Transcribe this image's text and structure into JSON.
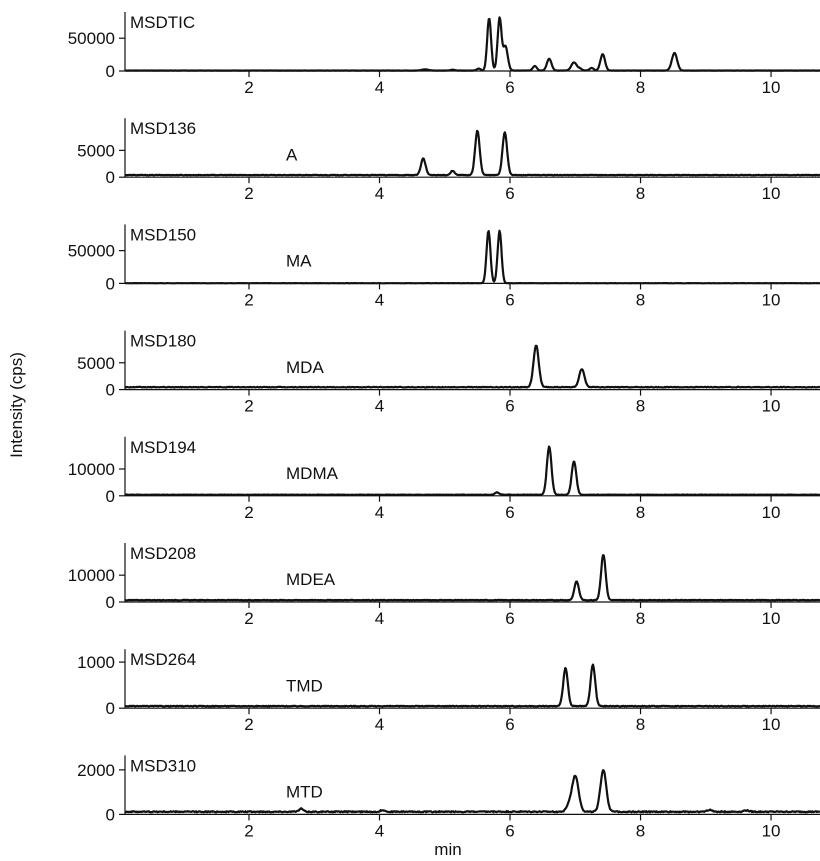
{
  "chart_data": {
    "type": "line",
    "ylabel": "Intensity (cps)",
    "xlabel": "min",
    "xlim": [
      0.1,
      10.75
    ],
    "xticks": [
      2,
      4,
      6,
      8,
      10
    ],
    "line_color": "#111111",
    "panels": [
      {
        "channel": "MSDTIC",
        "compound": "",
        "ylim": [
          0,
          90000
        ],
        "yticks": [
          0,
          50000
        ],
        "baseline": 700,
        "peaks": [
          [
            4.7,
            1800,
            0.05
          ],
          [
            5.12,
            1300,
            0.03
          ],
          [
            5.52,
            3000,
            0.03
          ],
          [
            5.68,
            80000,
            0.03
          ],
          [
            5.84,
            80000,
            0.03
          ],
          [
            5.93,
            37000,
            0.035
          ],
          [
            6.38,
            7000,
            0.03
          ],
          [
            6.6,
            18000,
            0.035
          ],
          [
            6.98,
            12500,
            0.04
          ],
          [
            7.07,
            3000,
            0.03
          ],
          [
            7.25,
            4000,
            0.03
          ],
          [
            7.42,
            25000,
            0.035
          ],
          [
            8.52,
            27000,
            0.04
          ]
        ],
        "noise": 120
      },
      {
        "channel": "MSD136",
        "compound": "A",
        "ylim": [
          0,
          11000
        ],
        "yticks": [
          0,
          5000
        ],
        "baseline": 400,
        "peaks": [
          [
            4.67,
            3100,
            0.035
          ],
          [
            5.12,
            800,
            0.03
          ],
          [
            5.5,
            8300,
            0.035
          ],
          [
            5.92,
            8000,
            0.035
          ]
        ],
        "noise": 50
      },
      {
        "channel": "MSD150",
        "compound": "MA",
        "ylim": [
          0,
          90000
        ],
        "yticks": [
          0,
          50000
        ],
        "baseline": 300,
        "peaks": [
          [
            5.67,
            80000,
            0.03
          ],
          [
            5.84,
            80000,
            0.03
          ]
        ],
        "noise": 150
      },
      {
        "channel": "MSD180",
        "compound": "MDA",
        "ylim": [
          0,
          11000
        ],
        "yticks": [
          0,
          5000
        ],
        "baseline": 450,
        "peaks": [
          [
            6.4,
            7800,
            0.04
          ],
          [
            7.1,
            3400,
            0.04
          ]
        ],
        "noise": 60
      },
      {
        "channel": "MSD194",
        "compound": "MDMA",
        "ylim": [
          0,
          22000
        ],
        "yticks": [
          0,
          10000
        ],
        "baseline": 400,
        "peaks": [
          [
            5.8,
            900,
            0.03
          ],
          [
            6.6,
            18000,
            0.035
          ],
          [
            6.98,
            12500,
            0.035
          ]
        ],
        "noise": 70
      },
      {
        "channel": "MSD208",
        "compound": "MDEA",
        "ylim": [
          0,
          22000
        ],
        "yticks": [
          0,
          10000
        ],
        "baseline": 700,
        "peaks": [
          [
            7.02,
            7000,
            0.035
          ],
          [
            7.43,
            17000,
            0.035
          ]
        ],
        "noise": 90
      },
      {
        "channel": "MSD264",
        "compound": "TMD",
        "ylim": [
          0,
          1280
        ],
        "yticks": [
          0,
          1000
        ],
        "baseline": 45,
        "peaks": [
          [
            6.85,
            830,
            0.035
          ],
          [
            7.27,
            900,
            0.035
          ]
        ],
        "noise": 8
      },
      {
        "channel": "MSD310",
        "compound": "MTD",
        "ylim": [
          0,
          2650
        ],
        "yticks": [
          0,
          2000
        ],
        "baseline": 120,
        "peaks": [
          [
            2.8,
            140,
            0.03
          ],
          [
            4.05,
            80,
            0.03
          ],
          [
            6.9,
            250,
            0.04
          ],
          [
            7.0,
            1620,
            0.05
          ],
          [
            7.43,
            1880,
            0.045
          ],
          [
            9.06,
            80,
            0.04
          ],
          [
            9.62,
            60,
            0.04
          ]
        ],
        "noise": 25
      }
    ]
  }
}
